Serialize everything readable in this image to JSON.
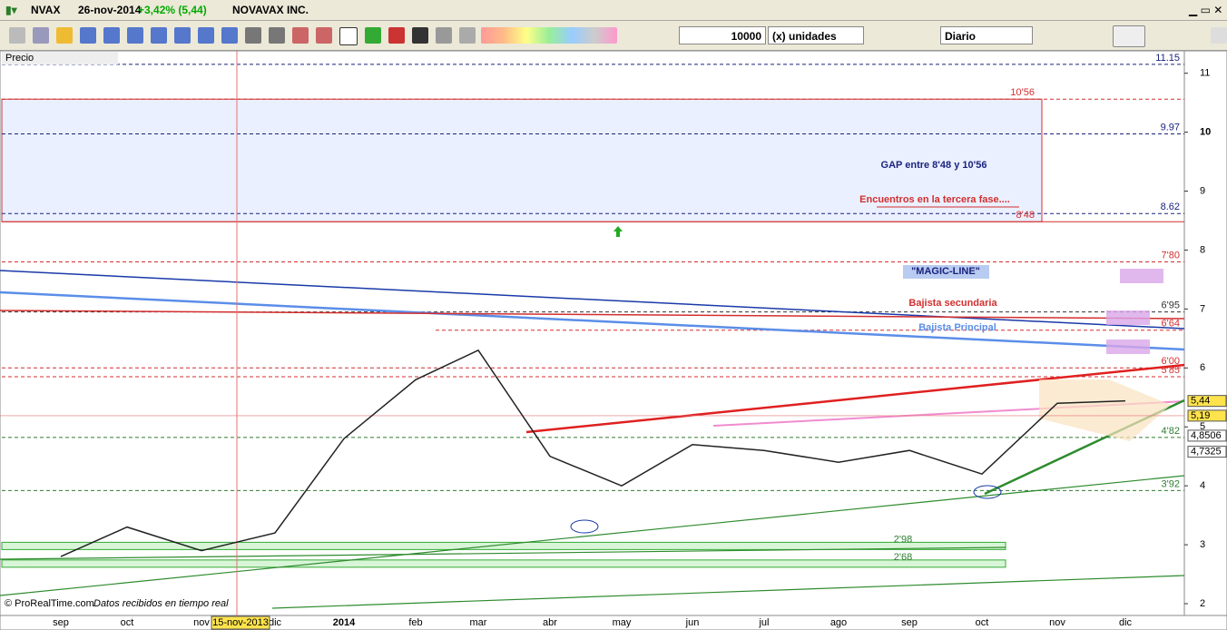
{
  "header": {
    "symbol": "NVAX",
    "date": "26-nov-2014",
    "change": "+3,42% (5,44)",
    "company": "NOVAVAX INC."
  },
  "toolbar": {
    "quantity": "10000",
    "units": "(x) unidades",
    "period": "Diario"
  },
  "panel_label": "Precio",
  "chart_data": {
    "type": "line",
    "categories": [
      "sep",
      "oct",
      "nov",
      "dic",
      "2014",
      "feb",
      "mar",
      "abr",
      "may",
      "jun",
      "jul",
      "ago",
      "sep",
      "oct",
      "nov",
      "dic"
    ],
    "series": [
      {
        "color": "#222222",
        "values": [
          2.8,
          3.3,
          2.9,
          3.2,
          4.8,
          5.8,
          6.3,
          4.5,
          4.0,
          4.7,
          4.6,
          4.4,
          4.6,
          4.2,
          5.4,
          5.44
        ]
      }
    ],
    "ylim": [
      1.8,
      11.38
    ],
    "yticks": [
      2,
      3,
      4,
      5,
      6,
      7,
      8,
      9,
      10,
      11
    ],
    "levels": [
      {
        "value": 11.15,
        "label": "11.15",
        "color": "#1a237e"
      },
      {
        "value": 10.56,
        "label": "10'56",
        "color": "#d32f2f"
      },
      {
        "value": 9.97,
        "label": "9.97",
        "color": "#1a237e"
      },
      {
        "value": 8.62,
        "label": "8.62",
        "color": "#1a237e"
      },
      {
        "value": 8.48,
        "label": "8'48",
        "color": "#d32f2f"
      },
      {
        "value": 7.8,
        "label": "7'80",
        "color": "#d32f2f"
      },
      {
        "value": 6.95,
        "label": "6'95",
        "color": "#333333"
      },
      {
        "value": 6.64,
        "label": "6'64",
        "color": "#d32f2f"
      },
      {
        "value": 6.0,
        "label": "6'00",
        "color": "#d32f2f"
      },
      {
        "value": 5.85,
        "label": "5'85",
        "color": "#d32f2f"
      },
      {
        "value": 4.82,
        "label": "4'82",
        "color": "#2e7d32"
      },
      {
        "value": 3.92,
        "label": "3'92",
        "color": "#2e7d32"
      },
      {
        "value": 2.98,
        "label": "2'98",
        "color": "#2e7d32"
      },
      {
        "value": 2.68,
        "label": "2'68",
        "color": "#2e7d32"
      }
    ],
    "price_tags": {
      "values": [
        5.44,
        5.19,
        4.8506,
        4.7325
      ],
      "value_labels": [
        "5,44",
        "5,19",
        "4,8506",
        "4,7325"
      ]
    },
    "annotations": [
      "GAP entre 8'48 y 10'56",
      "Encuentros en la tercera fase....",
      "\"MAGIC-LINE\"",
      "Bajista secundaria",
      "Bajista Principal"
    ],
    "cursor_date": "15-nov-2013"
  },
  "footer": {
    "copyright": "© ProRealTime.com",
    "status": "Datos recibidos en tiempo real"
  }
}
